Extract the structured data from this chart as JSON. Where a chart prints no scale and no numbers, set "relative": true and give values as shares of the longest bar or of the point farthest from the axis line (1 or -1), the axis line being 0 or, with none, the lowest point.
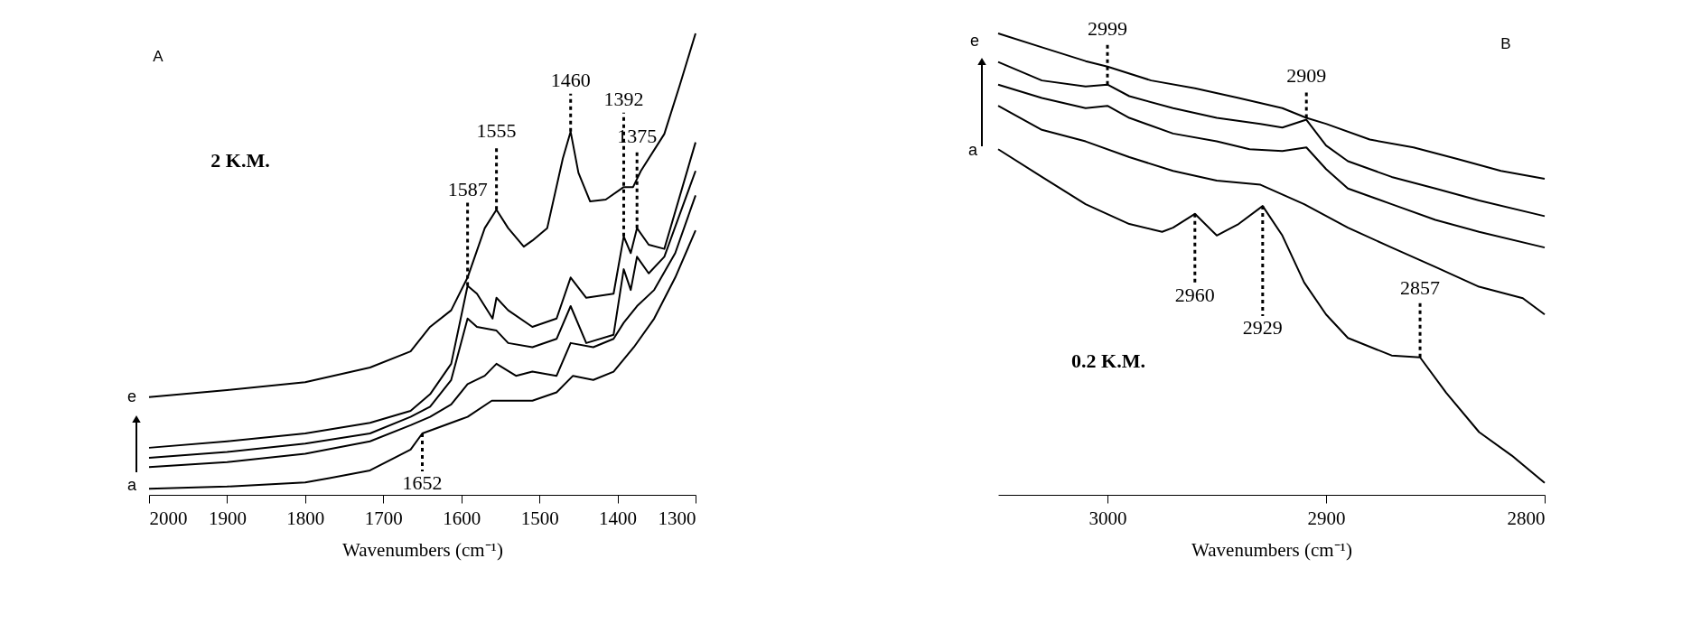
{
  "chart_data": [
    {
      "type": "line",
      "relative": true,
      "xlabel": "Wavenumbers (cm⁻¹)",
      "xlim": [
        2000,
        1300
      ],
      "xticks": [
        2000,
        1900,
        1800,
        1700,
        1600,
        1500,
        1400,
        1300
      ],
      "grid": false,
      "legend": false,
      "marker": "none",
      "line_style": "solid",
      "tick_labels": "x",
      "series": [
        {
          "color": "#000000",
          "x": [
            2000,
            1900,
            1800,
            1769,
            1717,
            1665,
            1650,
            1613,
            1592,
            1561,
            1509,
            1478,
            1457,
            1431,
            1405,
            1379,
            1353,
            1326,
            1300
          ],
          "values": [
            0.013,
            0.018,
            0.027,
            0.036,
            0.053,
            0.098,
            0.133,
            0.156,
            0.169,
            0.204,
            0.204,
            0.222,
            0.258,
            0.249,
            0.267,
            0.32,
            0.382,
            0.471,
            0.573
          ]
        },
        {
          "color": "#000000",
          "x": [
            2000,
            1900,
            1800,
            1717,
            1665,
            1640,
            1613,
            1592,
            1570,
            1555,
            1530,
            1509,
            1478,
            1460,
            1431,
            1405,
            1392,
            1375,
            1353,
            1326,
            1300
          ],
          "values": [
            0.06,
            0.071,
            0.089,
            0.116,
            0.151,
            0.169,
            0.196,
            0.24,
            0.258,
            0.284,
            0.258,
            0.267,
            0.258,
            0.329,
            0.32,
            0.338,
            0.373,
            0.409,
            0.444,
            0.524,
            0.649
          ]
        },
        {
          "color": "#000000",
          "x": [
            2000,
            1900,
            1800,
            1717,
            1665,
            1640,
            1613,
            1592,
            1580,
            1555,
            1540,
            1509,
            1478,
            1460,
            1440,
            1405,
            1392,
            1383,
            1375,
            1360,
            1340,
            1300
          ],
          "values": [
            0.08,
            0.093,
            0.111,
            0.133,
            0.169,
            0.191,
            0.249,
            0.382,
            0.364,
            0.356,
            0.329,
            0.32,
            0.338,
            0.409,
            0.329,
            0.347,
            0.489,
            0.444,
            0.516,
            0.48,
            0.516,
            0.702
          ]
        },
        {
          "color": "#000000",
          "x": [
            2000,
            1900,
            1800,
            1717,
            1665,
            1640,
            1613,
            1592,
            1580,
            1560,
            1555,
            1540,
            1509,
            1478,
            1460,
            1440,
            1405,
            1392,
            1383,
            1375,
            1360,
            1340,
            1300
          ],
          "values": [
            0.102,
            0.116,
            0.133,
            0.156,
            0.182,
            0.218,
            0.284,
            0.453,
            0.436,
            0.382,
            0.427,
            0.4,
            0.364,
            0.382,
            0.471,
            0.427,
            0.436,
            0.56,
            0.524,
            0.578,
            0.542,
            0.533,
            0.764
          ]
        },
        {
          "color": "#000000",
          "x": [
            2000,
            1900,
            1800,
            1717,
            1665,
            1640,
            1613,
            1592,
            1570,
            1555,
            1540,
            1520,
            1509,
            1490,
            1470,
            1460,
            1450,
            1435,
            1415,
            1392,
            1380,
            1370,
            1340,
            1320,
            1300
          ],
          "values": [
            0.212,
            0.227,
            0.244,
            0.276,
            0.311,
            0.364,
            0.4,
            0.471,
            0.578,
            0.618,
            0.578,
            0.538,
            0.551,
            0.578,
            0.729,
            0.787,
            0.698,
            0.636,
            0.64,
            0.667,
            0.667,
            0.702,
            0.782,
            0.889,
            1.0
          ]
        }
      ],
      "annotations": [
        "A",
        "e",
        "a",
        "2 K.M.",
        {
          "text": "1460",
          "x": 1460,
          "y": 0.787
        },
        {
          "text": "1555",
          "x": 1555,
          "y": 0.618
        },
        {
          "text": "1587",
          "x": 1592,
          "y": 0.453
        },
        {
          "text": "1392",
          "x": 1392,
          "y": 0.56
        },
        {
          "text": "1375",
          "x": 1375,
          "y": 0.578
        },
        {
          "text": "1652",
          "x": 1650,
          "y": 0.133
        }
      ]
    },
    {
      "type": "line",
      "relative": true,
      "xlabel": "Wavenumbers (cm⁻¹)",
      "xlim": [
        3050,
        2800
      ],
      "xticks": [
        3000,
        2900,
        2800
      ],
      "grid": false,
      "legend": false,
      "marker": "none",
      "line_style": "solid",
      "tick_labels": "x",
      "series": [
        {
          "color": "#000000",
          "x": [
            3050,
            3030,
            3010,
            2990,
            2975,
            2970,
            2960,
            2950,
            2940,
            2929,
            2920,
            2910,
            2900,
            2890,
            2870,
            2857,
            2845,
            2830,
            2815,
            2800
          ],
          "values": [
            0.749,
            0.689,
            0.63,
            0.587,
            0.57,
            0.579,
            0.609,
            0.562,
            0.587,
            0.626,
            0.562,
            0.46,
            0.391,
            0.34,
            0.302,
            0.298,
            0.221,
            0.136,
            0.085,
            0.026
          ]
        },
        {
          "color": "#000000",
          "x": [
            3050,
            3030,
            3010,
            2990,
            2970,
            2950,
            2930,
            2910,
            2890,
            2870,
            2850,
            2830,
            2810,
            2800
          ],
          "values": [
            0.843,
            0.791,
            0.766,
            0.732,
            0.702,
            0.681,
            0.672,
            0.63,
            0.579,
            0.536,
            0.494,
            0.451,
            0.426,
            0.391
          ]
        },
        {
          "color": "#000000",
          "x": [
            3050,
            3030,
            3010,
            3000,
            2990,
            2970,
            2950,
            2935,
            2920,
            2909,
            2900,
            2890,
            2870,
            2850,
            2830,
            2800
          ],
          "values": [
            0.889,
            0.86,
            0.838,
            0.843,
            0.817,
            0.783,
            0.766,
            0.749,
            0.745,
            0.753,
            0.706,
            0.664,
            0.63,
            0.596,
            0.57,
            0.536
          ]
        },
        {
          "color": "#000000",
          "x": [
            3050,
            3030,
            3010,
            3000,
            2990,
            2970,
            2950,
            2930,
            2920,
            2909,
            2900,
            2890,
            2870,
            2850,
            2830,
            2800
          ],
          "values": [
            0.938,
            0.898,
            0.885,
            0.889,
            0.864,
            0.838,
            0.817,
            0.804,
            0.796,
            0.813,
            0.757,
            0.723,
            0.689,
            0.664,
            0.638,
            0.604
          ]
        },
        {
          "color": "#000000",
          "x": [
            3050,
            3030,
            3010,
            3000,
            2980,
            2960,
            2940,
            2920,
            2909,
            2900,
            2880,
            2860,
            2840,
            2820,
            2800
          ],
          "values": [
            1.0,
            0.97,
            0.94,
            0.928,
            0.898,
            0.881,
            0.86,
            0.838,
            0.817,
            0.804,
            0.77,
            0.753,
            0.728,
            0.702,
            0.685
          ]
        }
      ],
      "annotations": [
        "B",
        "e",
        "a",
        "0.2 K.M.",
        {
          "text": "2999",
          "x": 3000,
          "y": 0.889
        },
        {
          "text": "2909",
          "x": 2909,
          "y": 0.817
        },
        {
          "text": "2960",
          "x": 2960,
          "y": 0.609
        },
        {
          "text": "2929",
          "x": 2929,
          "y": 0.626
        },
        {
          "text": "2857",
          "x": 2857,
          "y": 0.298
        }
      ]
    }
  ]
}
